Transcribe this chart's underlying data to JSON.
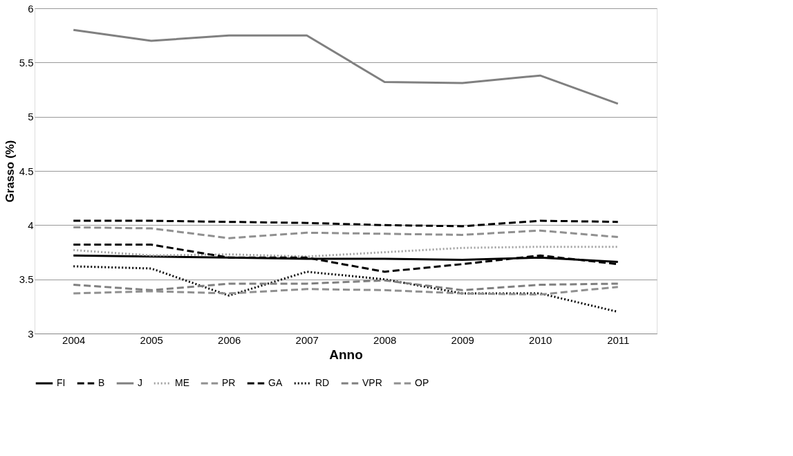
{
  "chart_data": {
    "type": "line",
    "xlabel": "Anno",
    "ylabel": "Grasso (%)",
    "categories": [
      "2004",
      "2005",
      "2006",
      "2007",
      "2008",
      "2009",
      "2010",
      "2011"
    ],
    "ylim": [
      3,
      6
    ],
    "yticks": [
      3,
      3.5,
      4,
      4.5,
      5,
      5.5,
      6
    ],
    "grid": "y",
    "legend": "bottom",
    "marker": "none",
    "series": [
      {
        "name": "FI",
        "color": "#000000",
        "line_style": "solid",
        "values": [
          3.72,
          3.71,
          3.7,
          3.69,
          3.69,
          3.68,
          3.7,
          3.66
        ]
      },
      {
        "name": "B",
        "color": "#000000",
        "line_style": "dashed",
        "values": [
          4.04,
          4.04,
          4.03,
          4.02,
          4.0,
          3.99,
          4.04,
          4.03
        ]
      },
      {
        "name": "J",
        "color": "#808080",
        "line_style": "solid",
        "values": [
          5.8,
          5.7,
          5.75,
          5.75,
          5.32,
          5.31,
          5.38,
          5.12
        ]
      },
      {
        "name": "ME",
        "color": "#a0a0a0",
        "line_style": "dotted",
        "values": [
          3.77,
          3.72,
          3.73,
          3.71,
          3.75,
          3.79,
          3.8,
          3.8
        ]
      },
      {
        "name": "PR",
        "color": "#909090",
        "line_style": "dashed",
        "values": [
          3.98,
          3.97,
          3.88,
          3.93,
          3.92,
          3.91,
          3.95,
          3.89
        ]
      },
      {
        "name": "GA",
        "color": "#000000",
        "line_style": "dashed",
        "values": [
          3.82,
          3.82,
          3.7,
          3.7,
          3.57,
          3.64,
          3.72,
          3.64
        ]
      },
      {
        "name": "RD",
        "color": "#000000",
        "line_style": "dotted",
        "values": [
          3.62,
          3.6,
          3.35,
          3.57,
          3.5,
          3.37,
          3.37,
          3.2
        ]
      },
      {
        "name": "VPR",
        "color": "#808080",
        "line_style": "dashed",
        "values": [
          3.45,
          3.4,
          3.46,
          3.46,
          3.49,
          3.4,
          3.45,
          3.46
        ]
      },
      {
        "name": "OP",
        "color": "#909090",
        "line_style": "dashed",
        "values": [
          3.37,
          3.39,
          3.37,
          3.41,
          3.4,
          3.37,
          3.36,
          3.43
        ]
      }
    ]
  }
}
